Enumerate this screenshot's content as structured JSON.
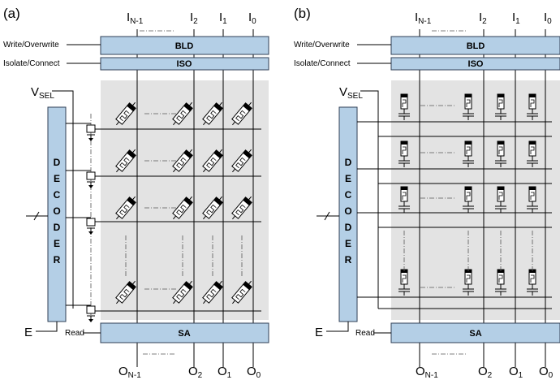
{
  "panels": [
    {
      "label": "(a)",
      "block_top": "BLD",
      "block_iso": "ISO",
      "block_bottom": "SA",
      "decoder": [
        "D",
        "E",
        "C",
        "O",
        "D",
        "E",
        "R"
      ],
      "label_write": "Write/Overwrite",
      "label_isolate": "Isolate/Connect",
      "label_read": "Read",
      "label_vsel": "V",
      "label_vsel_sub": "SEL",
      "label_e": "E",
      "inputs": [
        {
          "main": "I",
          "sub": "N-1"
        },
        {
          "main": "I",
          "sub": "2"
        },
        {
          "main": "I",
          "sub": "1"
        },
        {
          "main": "I",
          "sub": "0"
        }
      ],
      "outputs": [
        {
          "main": "O",
          "sub": "N-1"
        },
        {
          "main": "O",
          "sub": "2"
        },
        {
          "main": "O",
          "sub": "1"
        },
        {
          "main": "O",
          "sub": "0"
        }
      ]
    },
    {
      "label": "(b)",
      "block_top": "BLD",
      "block_iso": "ISO",
      "block_bottom": "SA",
      "decoder": [
        "D",
        "E",
        "C",
        "O",
        "D",
        "E",
        "R"
      ],
      "label_write": "Write/Overwrite",
      "label_isolate": "Isolate/Connect",
      "label_read": "Read",
      "label_vsel": "V",
      "label_vsel_sub": "SEL",
      "label_e": "E",
      "inputs": [
        {
          "main": "I",
          "sub": "N-1"
        },
        {
          "main": "I",
          "sub": "2"
        },
        {
          "main": "I",
          "sub": "1"
        },
        {
          "main": "I",
          "sub": "0"
        }
      ],
      "outputs": [
        {
          "main": "O",
          "sub": "N-1"
        },
        {
          "main": "O",
          "sub": "2"
        },
        {
          "main": "O",
          "sub": "1"
        },
        {
          "main": "O",
          "sub": "0"
        }
      ]
    }
  ]
}
